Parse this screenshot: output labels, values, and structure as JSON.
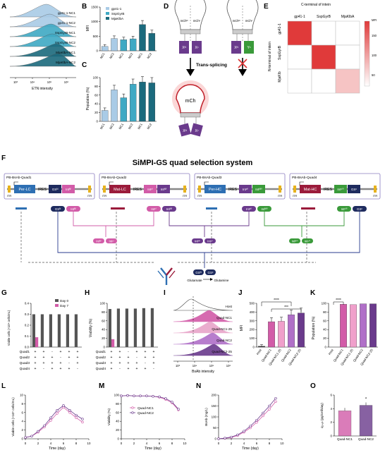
{
  "colors": {
    "gp41": "#a9cbe6",
    "sspgyrb": "#3fa9c4",
    "mjaklba": "#1b6a7d",
    "purple": "#6a3a8c",
    "crimson": "#9b1b3b",
    "blue": "#2e6fb3",
    "green": "#3a9a3a",
    "pink": "#d25ca8",
    "heatmap_high": "#e03a3a"
  },
  "panelA": {
    "label": "A",
    "tracks": [
      "gp41-1-NC1",
      "gp41-1-NC2",
      "SspGyrB-NC1",
      "SspGyrB-NC2",
      "MjaKlbA-NC1",
      "MjaKlbA-NC2"
    ],
    "xlabel": "ETN intensity",
    "ticks": [
      "10³",
      "10⁴",
      "10⁵",
      "10⁶"
    ]
  },
  "panelB": {
    "label": "B",
    "ylabel": "MFI",
    "legend": [
      "gp41-1",
      "SspGyrB",
      "MjaKlbA"
    ],
    "yticks": [
      "0",
      "500",
      "1000",
      "1500"
    ],
    "categories": [
      "NC1",
      "NC2",
      "NC1",
      "NC2",
      "NC1",
      "NC2"
    ],
    "values": [
      150,
      420,
      380,
      410,
      900,
      600
    ]
  },
  "panelC": {
    "label": "C",
    "ylabel": "Population (%)",
    "yticks": [
      "0",
      "20",
      "40",
      "60",
      "80",
      "100"
    ],
    "categories": [
      "NC1",
      "NC2",
      "NC1",
      "NC2",
      "NC1",
      "NC2"
    ],
    "values": [
      25,
      72,
      54,
      85,
      90,
      88
    ]
  },
  "panelD": {
    "label": "D",
    "bulb_labels": [
      "mChᴺ",
      "mChᶜ",
      "mChᴺ",
      "mChᶜ"
    ],
    "box_labels": [
      "Xᴺ",
      "Xᶜ",
      "Xᴺ",
      "Yᶜ"
    ],
    "trans_splicing": "Trans-splicing",
    "mch": "mCh",
    "pair_labels": [
      "Xᴺ",
      "Xᶜ"
    ]
  },
  "panelE": {
    "label": "E",
    "title": "C-terminal of intein",
    "cols": [
      "gp41-1",
      "SspGyrB",
      "MjaKlbA"
    ],
    "rows": [
      "gp41-1",
      "SspGyrB",
      "MjaKlb"
    ],
    "ylabel": "N-terminal of intein",
    "colorbar_title": "MFI",
    "colorbar_ticks": [
      "150",
      "100",
      "50"
    ],
    "matrix": [
      [
        1,
        0,
        0
      ],
      [
        0,
        1,
        0
      ],
      [
        0,
        0,
        0.3
      ]
    ]
  },
  "panelF": {
    "label": "F",
    "title": "SiMPI-GS quad selection system",
    "constructs": [
      {
        "name": "PB-BsAb-Quad1",
        "gene": "Per-LC",
        "parts": [
          "IRES",
          "GSᴺ",
          "Intᴺⁱ"
        ],
        "itr": "ITR"
      },
      {
        "name": "PB-BsAb-Quad2",
        "gene": "Mat-LC",
        "parts": [
          "IRES",
          "Intᶜⁱ",
          "Intᴺⁱⁱ"
        ],
        "itr": "ITR"
      },
      {
        "name": "PB-BsAb-Quad3",
        "gene": "Per-HC",
        "parts": [
          "IRES",
          "Intᶜⁱⁱ",
          "Intᴺⁱⁱⁱ"
        ],
        "itr": "ITR"
      },
      {
        "name": "PB-BsAb-Quad4",
        "gene": "Mat-HC",
        "parts": [
          "IRES",
          "Intᶜⁱⁱⁱ",
          "GSᶜ"
        ],
        "itr": "ITR"
      }
    ],
    "gs_labels": [
      "GSᴺ",
      "Intᴺⁱ",
      "Intᶜⁱ",
      "Intᴺⁱⁱ",
      "Intᶜⁱⁱ",
      "Intᴺⁱⁱⁱ",
      "Intᶜⁱⁱⁱ",
      "GSᶜ"
    ],
    "pair1": [
      "Intᴺⁱ",
      "Intᶜⁱ"
    ],
    "pair2": [
      "Intᴺⁱⁱ",
      "Intᶜⁱⁱ"
    ],
    "pair3": [
      "Intᴺⁱⁱⁱ",
      "Intᶜⁱⁱⁱ"
    ],
    "gs_final": [
      "GSᴺ",
      "GSᶜ"
    ],
    "product": "Glutamate",
    "product2": "Glutamine"
  },
  "panelG": {
    "label": "G",
    "ylabel": "Viable cells (×10⁶ cells/mL)",
    "legend": [
      "Day 0",
      "Day 7"
    ],
    "yticks": [
      "0.0",
      "0.1",
      "0.2",
      "0.3",
      "0.4"
    ],
    "day0": [
      0.3,
      0.3,
      0.3,
      0.3,
      0.3,
      0.3
    ],
    "day7": [
      0.09,
      0,
      0,
      0,
      0,
      0
    ]
  },
  "panelH": {
    "label": "H",
    "ylabel": "Viability (%)",
    "yticks": [
      "0",
      "20",
      "40",
      "60",
      "80",
      "100"
    ],
    "day0": [
      87,
      88,
      88,
      88,
      89,
      89
    ],
    "day7": [
      18,
      0,
      0,
      0,
      0,
      0
    ]
  },
  "quad_table": {
    "rows": [
      "Quad1",
      "Quad2",
      "Quad3",
      "Quad4"
    ],
    "cells": [
      [
        "+",
        "+",
        "-",
        "+",
        "+",
        "+"
      ],
      [
        "+",
        "+",
        "+",
        "-",
        "+",
        "+"
      ],
      [
        "+",
        "+",
        "+",
        "+",
        "-",
        "+"
      ],
      [
        "+",
        "-",
        "+",
        "+",
        "+",
        "-"
      ]
    ]
  },
  "panelI": {
    "label": "I",
    "tracks": [
      "Host",
      "Quad-NC1",
      "Quad-NC1-25",
      "Quad-NC2",
      "Quad-NC2-25"
    ],
    "xlabel": "BsAb intensity",
    "ticks": [
      "10³",
      "10⁴",
      "10⁵",
      "10⁶"
    ]
  },
  "panelJ": {
    "label": "J",
    "ylabel": "MFI",
    "yticks": [
      "0",
      "100",
      "200",
      "300",
      "400",
      "500"
    ],
    "categories": [
      "Host",
      "Quad-NC1",
      "Quad-NC1-25",
      "Quad-NC2",
      "Quad-NC2-25"
    ],
    "values": [
      10,
      290,
      295,
      370,
      390
    ],
    "sig1": "****",
    "sig2": "***"
  },
  "panelK": {
    "label": "K",
    "ylabel": "Population (%)",
    "yticks": [
      "0",
      "20",
      "40",
      "60",
      "80",
      "100"
    ],
    "categories": [
      "Host",
      "Quad-NC1",
      "Quad-NC1-25",
      "Quad-NC2",
      "Quad-NC2-25"
    ],
    "values": [
      0,
      98,
      97,
      99,
      99
    ],
    "sig": "****"
  },
  "chart_data": [
    {
      "type": "line",
      "panel": "L",
      "xlabel": "Time (day)",
      "ylabel": "Viable cells (×10⁶ cells/mL)",
      "ylim": [
        0,
        10
      ],
      "xlim": [
        0,
        10
      ],
      "series": [
        {
          "name": "Quad-NC1",
          "x": [
            0,
            1,
            2,
            3,
            4,
            5,
            6,
            7,
            8,
            9
          ],
          "y": [
            0.3,
            0.6,
            1.5,
            2.7,
            4.2,
            5.8,
            7.2,
            6.0,
            4.8,
            3.8
          ]
        },
        {
          "name": "Quad-NC2",
          "x": [
            0,
            1,
            2,
            3,
            4,
            5,
            6,
            7,
            8,
            9
          ],
          "y": [
            0.3,
            0.6,
            1.7,
            3.0,
            4.8,
            6.5,
            7.6,
            6.5,
            5.4,
            4.5
          ]
        }
      ]
    },
    {
      "type": "line",
      "panel": "M",
      "xlabel": "Time (day)",
      "ylabel": "Viability (%)",
      "ylim": [
        0,
        100
      ],
      "xlim": [
        0,
        10
      ],
      "series": [
        {
          "name": "Quad-NC1",
          "x": [
            0,
            1,
            2,
            3,
            4,
            5,
            6,
            7,
            8,
            9
          ],
          "y": [
            98,
            99,
            98,
            98,
            98,
            97,
            95,
            90,
            82,
            66
          ]
        },
        {
          "name": "Quad-NC2",
          "x": [
            0,
            1,
            2,
            3,
            4,
            5,
            6,
            7,
            8,
            9
          ],
          "y": [
            98,
            99,
            98,
            98,
            98,
            97,
            96,
            92,
            84,
            68
          ]
        }
      ]
    },
    {
      "type": "line",
      "panel": "N",
      "xlabel": "Time (day)",
      "ylabel": "BsAb (mg/L)",
      "ylim": [
        0,
        200
      ],
      "xlim": [
        0,
        10
      ],
      "series": [
        {
          "name": "Quad-NC1",
          "x": [
            0,
            1,
            2,
            3,
            4,
            5,
            6,
            7,
            8,
            9
          ],
          "y": [
            0,
            2,
            6,
            15,
            30,
            50,
            75,
            105,
            135,
            170
          ]
        },
        {
          "name": "Quad-NC2",
          "x": [
            0,
            1,
            2,
            3,
            4,
            5,
            6,
            7,
            8,
            9
          ],
          "y": [
            0,
            3,
            8,
            18,
            35,
            58,
            85,
            118,
            150,
            185
          ]
        }
      ]
    },
    {
      "type": "bar",
      "panel": "O",
      "ylabel": "q₂ₛₐₕ (pg/cell/day)",
      "categories": [
        "Quad-NC1",
        "Quad-NC2"
      ],
      "values": [
        3.7,
        4.5
      ],
      "ylim": [
        0,
        6
      ],
      "annotation": "*"
    }
  ],
  "timeLM": {
    "xticks": [
      "0",
      "2",
      "4",
      "6",
      "8",
      "10"
    ]
  },
  "LticksY": [
    "0",
    "2",
    "4",
    "6",
    "8",
    "10"
  ],
  "MticksY": [
    "0",
    "20",
    "40",
    "60",
    "80",
    "100"
  ],
  "NticksY": [
    "0",
    "50",
    "100",
    "150",
    "200"
  ],
  "OticksY": [
    "0",
    "2",
    "4",
    "6"
  ]
}
